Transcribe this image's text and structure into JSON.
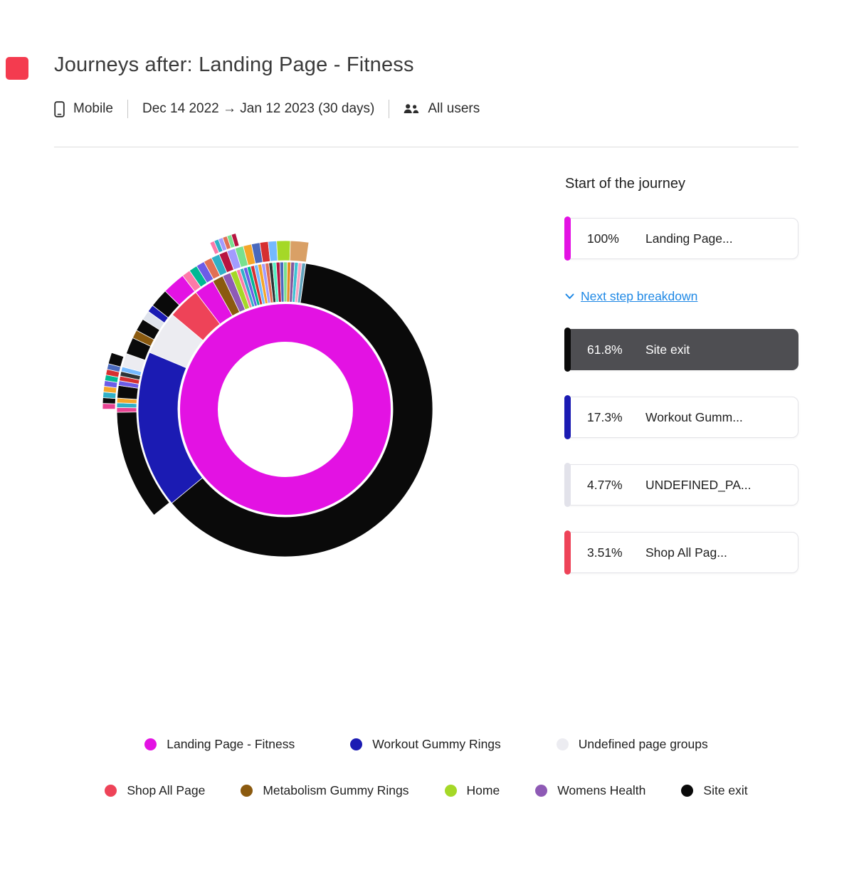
{
  "header": {
    "title": "Journeys after: Landing Page - Fitness",
    "device": "Mobile",
    "date_range": "Dec 14 2022 → Jan 12 2023 (30 days)",
    "audience": "All users"
  },
  "panel": {
    "title": "Start of the journey",
    "start_card": {
      "percent": "100%",
      "label": "Landing Page...",
      "color": "#e312e3"
    },
    "breakdown_label": "Next step breakdown",
    "cards": [
      {
        "percent": "61.8%",
        "label": "Site exit",
        "color": "#0a0a0a",
        "selected": true
      },
      {
        "percent": "17.3%",
        "label": "Workout Gumm...",
        "color": "#1b1bb3",
        "selected": false
      },
      {
        "percent": "4.77%",
        "label": "UNDEFINED_PA...",
        "color": "#e2e2ea",
        "selected": false
      },
      {
        "percent": "3.51%",
        "label": "Shop All Pag...",
        "color": "#ee4358",
        "selected": false
      }
    ]
  },
  "legend": {
    "rows": [
      [
        {
          "label": "Landing Page - Fitness",
          "color": "#e312e3"
        },
        {
          "label": "Workout Gummy Rings",
          "color": "#1b1bb3"
        },
        {
          "label": "Undefined page groups",
          "color": "#ececf1"
        }
      ],
      [
        {
          "label": "Shop All Page",
          "color": "#ee4358"
        },
        {
          "label": "Metabolism Gummy Rings",
          "color": "#8b5a0f"
        },
        {
          "label": "Home",
          "color": "#a5d827"
        },
        {
          "label": "Womens Health",
          "color": "#8e5ab5"
        },
        {
          "label": "Site exit",
          "color": "#0a0a0a"
        }
      ]
    ]
  },
  "ui": {
    "corner_color": "#f43b4f",
    "accent_blue": "#1e88e5"
  },
  "chart_data": {
    "type": "sunburst",
    "title": "Journeys after: Landing Page - Fitness",
    "description": "Inner ring is the journey start page (100% Landing Page - Fitness); outer rings are next-step breakdowns. Main next steps: Site exit 61.8%, Workout Gummy Rings 17.3%, Undefined page groups 4.77%, Shop All Page 3.51%.",
    "center": [
      325,
      360
    ],
    "start_angle_deg": 8,
    "rings": [
      {
        "r0": 95,
        "r1": 148,
        "segments": [
          {
            "label": "Landing Page - Fitness",
            "value": 100,
            "color": "#e312e3"
          }
        ]
      },
      {
        "r0": 151,
        "r1": 207,
        "segments": [
          {
            "label": "Site exit",
            "value": 61.8,
            "color": "#0a0a0a"
          },
          {
            "label": "Workout Gummy Rings",
            "value": 17.3,
            "color": "#1b1bb3"
          },
          {
            "label": "Undefined page groups",
            "value": 4.77,
            "color": "#ececf1"
          },
          {
            "label": "Shop All Page",
            "value": 3.51,
            "color": "#ee4358"
          },
          {
            "label": "Landing Page - Fitness",
            "value": 2.2,
            "color": "#e312e3"
          },
          {
            "label": "Metabolism Gummy Rings",
            "value": 1.2,
            "color": "#8b5a0f"
          },
          {
            "label": "Womens Health",
            "value": 0.9,
            "color": "#8e5ab5"
          },
          {
            "label": "Home",
            "value": 0.7,
            "color": "#a5d827"
          },
          {
            "value": 0.4,
            "color": "#fd79a8"
          },
          {
            "value": 0.4,
            "color": "#30b0c7"
          },
          {
            "value": 0.4,
            "color": "#6c5ce7"
          },
          {
            "value": 0.4,
            "color": "#00b894"
          },
          {
            "value": 0.4,
            "color": "#d63031"
          },
          {
            "value": 0.4,
            "color": "#74b9ff"
          },
          {
            "value": 0.4,
            "color": "#f4a62a"
          },
          {
            "value": 0.4,
            "color": "#a29bfe"
          },
          {
            "value": 0.4,
            "color": "#e17055"
          },
          {
            "value": 0.4,
            "color": "#2d3436"
          },
          {
            "value": 0.4,
            "color": "#55efc4"
          },
          {
            "value": 0.4,
            "color": "#b71540"
          },
          {
            "value": 0.4,
            "color": "#4a69bd"
          },
          {
            "value": 0.4,
            "color": "#78e08f"
          },
          {
            "value": 0.4,
            "color": "#e58e26"
          },
          {
            "value": 0.4,
            "color": "#82589f"
          },
          {
            "value": 0.4,
            "color": "#3dc1d3"
          },
          {
            "value": 0.4,
            "color": "#f8a5c2"
          },
          {
            "value": 0.4,
            "color": "#60a3bc"
          }
        ]
      },
      {
        "r0": 209,
        "r1": 237,
        "segments": [
          {
            "value": 62.0,
            "color": "none"
          },
          {
            "label": "Site exit",
            "value": 10.5,
            "color": "#0a0a0a"
          },
          {
            "value": 0.45,
            "color": "#e84393"
          },
          {
            "value": 0.45,
            "color": "#30b0c7"
          },
          {
            "value": 0.45,
            "color": "#f4a62a"
          },
          {
            "value": 1.2,
            "color": "#0a0a0a"
          },
          {
            "value": 0.45,
            "color": "#6c5ce7"
          },
          {
            "value": 0.45,
            "color": "#d63031"
          },
          {
            "value": 0.45,
            "color": "#2d3436"
          },
          {
            "value": 0.45,
            "color": "#74b9ff"
          },
          {
            "value": 1.3,
            "color": "#ececf1"
          },
          {
            "value": 1.6,
            "color": "#0a0a0a"
          },
          {
            "value": 0.8,
            "color": "#8b5a0f"
          },
          {
            "value": 1.2,
            "color": "#0a0a0a"
          },
          {
            "value": 0.9,
            "color": "#dfe3ec"
          },
          {
            "value": 0.7,
            "color": "#1b1bb3"
          },
          {
            "value": 1.8,
            "color": "#0a0a0a"
          },
          {
            "label": "Landing Page - Fitness",
            "value": 2.2,
            "color": "#e312e3"
          },
          {
            "value": 0.8,
            "color": "#fd79a8"
          },
          {
            "value": 0.8,
            "color": "#00b894"
          },
          {
            "value": 0.8,
            "color": "#6c5ce7"
          },
          {
            "value": 0.8,
            "color": "#e17055"
          },
          {
            "value": 0.8,
            "color": "#30b0c7"
          },
          {
            "value": 0.8,
            "color": "#b71540"
          },
          {
            "value": 0.8,
            "color": "#a29bfe"
          },
          {
            "value": 0.8,
            "color": "#78e08f"
          },
          {
            "value": 0.8,
            "color": "#f4a62a"
          },
          {
            "value": 0.8,
            "color": "#4a69bd"
          },
          {
            "value": 0.8,
            "color": "#d63031"
          },
          {
            "value": 0.8,
            "color": "#74b9ff"
          },
          {
            "value": 1.3,
            "color": "#a5d827"
          },
          {
            "value": 1.75,
            "color": "#d9a066"
          }
        ]
      },
      {
        "r0": 239,
        "r1": 257,
        "segments": [
          {
            "value": 72.8,
            "color": "none"
          },
          {
            "value": 0.5,
            "color": "#e84393"
          },
          {
            "value": 0.5,
            "color": "#0a0a0a"
          },
          {
            "value": 0.5,
            "color": "#30b0c7"
          },
          {
            "value": 0.5,
            "color": "#f4a62a"
          },
          {
            "value": 0.5,
            "color": "#6c5ce7"
          },
          {
            "value": 0.5,
            "color": "#00b894"
          },
          {
            "value": 0.5,
            "color": "#d63031"
          },
          {
            "value": 0.5,
            "color": "#4a69bd"
          },
          {
            "value": 1.0,
            "color": "#0a0a0a"
          },
          {
            "value": 13.2,
            "color": "none"
          },
          {
            "value": 0.4,
            "color": "#fd79a8"
          },
          {
            "value": 0.4,
            "color": "#30b0c7"
          },
          {
            "value": 0.4,
            "color": "#a29bfe"
          },
          {
            "value": 0.4,
            "color": "#e17055"
          },
          {
            "value": 0.4,
            "color": "#78e08f"
          },
          {
            "value": 0.4,
            "color": "#b71540"
          },
          {
            "value": 6.6,
            "color": "none"
          }
        ]
      }
    ]
  }
}
